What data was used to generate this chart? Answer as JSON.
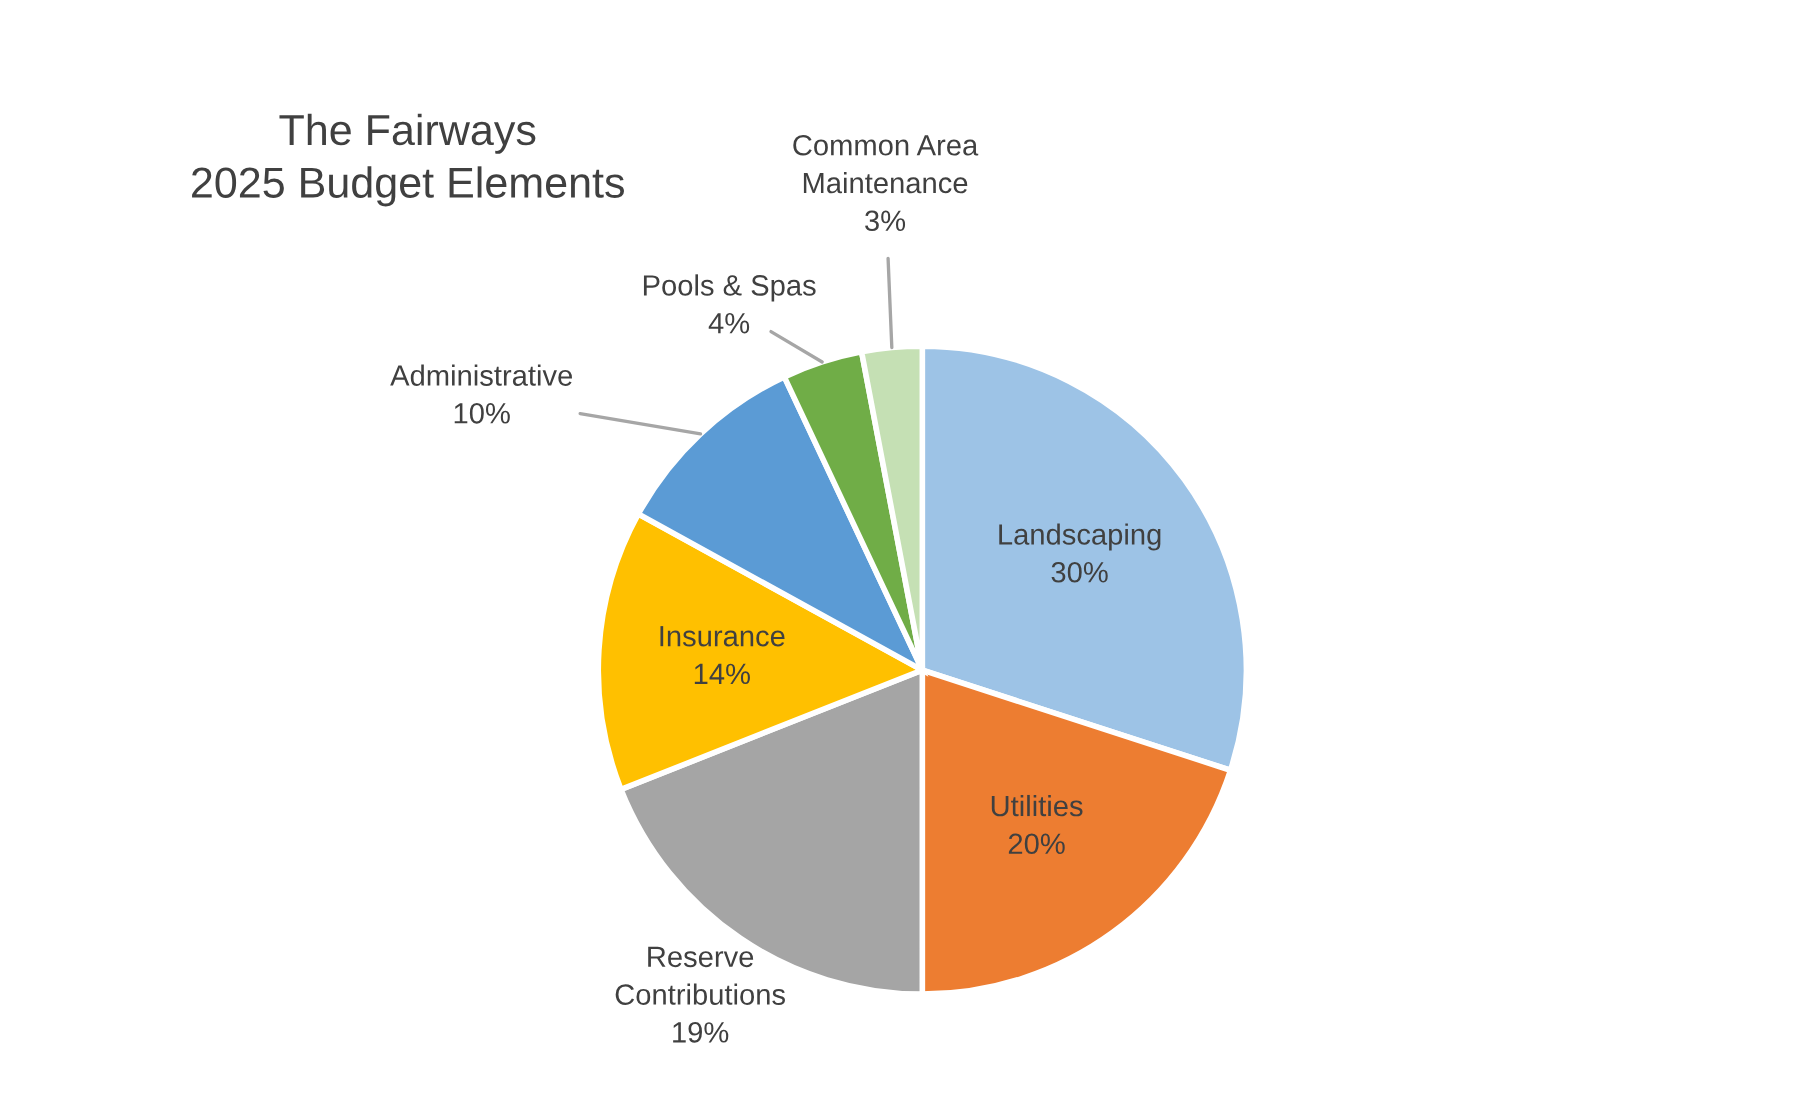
{
  "chart_data": {
    "type": "pie",
    "title": "The Fairways\n2025 Budget Elements",
    "categories": [
      "Landscaping",
      "Utilities",
      "Reserve\nContributions",
      "Insurance",
      "Administrative",
      "Pools & Spas",
      "Common Area\nMaintenance"
    ],
    "values": [
      30,
      20,
      19,
      14,
      10,
      4,
      3
    ],
    "colors": [
      "#9dc3e6",
      "#ed7d31",
      "#a5a5a5",
      "#ffc000",
      "#5b9bd5",
      "#70ad47",
      "#c5e0b4"
    ],
    "value_labels": [
      "30%",
      "20%",
      "19%",
      "14%",
      "10%",
      "4%",
      "3%"
    ],
    "legend": false
  }
}
